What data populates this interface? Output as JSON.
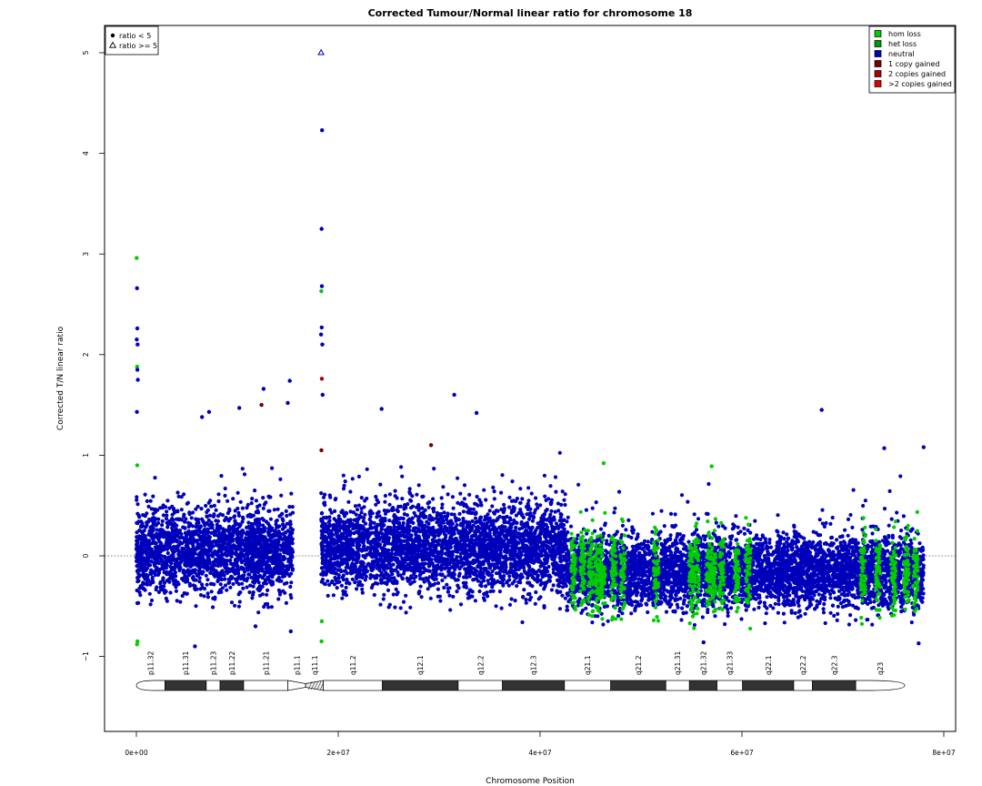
{
  "chart_data": {
    "type": "scatter",
    "title": "Corrected Tumour/Normal linear ratio for chromosome  18",
    "xlabel": "Chromosome Position",
    "ylabel": "Corrected T/N linear ratio",
    "xlim": [
      0,
      80000000
    ],
    "ylim": [
      -1.7,
      5.2
    ],
    "x_ticks": [
      {
        "value": 0,
        "label": "0e+00"
      },
      {
        "value": 20000000,
        "label": "2e+07"
      },
      {
        "value": 40000000,
        "label": "4e+07"
      },
      {
        "value": 60000000,
        "label": "6e+07"
      },
      {
        "value": 80000000,
        "label": "8e+07"
      }
    ],
    "y_ticks": [
      {
        "value": -1,
        "label": "−1"
      },
      {
        "value": 0,
        "label": "0"
      },
      {
        "value": 1,
        "label": "1"
      },
      {
        "value": 2,
        "label": "2"
      },
      {
        "value": 3,
        "label": "3"
      },
      {
        "value": 4,
        "label": "4"
      },
      {
        "value": 5,
        "label": "5"
      }
    ],
    "reference_line_y": 0,
    "grid": false,
    "legend_shape": {
      "placement": "top-left",
      "entries": [
        {
          "label": "ratio < 5",
          "marker": "filled-circle"
        },
        {
          "label": "ratio >= 5",
          "marker": "open-triangle"
        }
      ]
    },
    "legend_status": {
      "placement": "top-right",
      "entries": [
        {
          "label": "hom loss",
          "color": "#00cc00"
        },
        {
          "label": "het loss",
          "color": "#009900"
        },
        {
          "label": "neutral",
          "color": "#0000bb"
        },
        {
          "label": "1 copy gained",
          "color": "#770000"
        },
        {
          "label": "2 copies gained",
          "color": "#aa0000"
        },
        {
          "label": ">2 copies gained",
          "color": "#dd0000"
        }
      ]
    },
    "segments": [
      {
        "status": "neutral",
        "x_start": 0,
        "x_end": 15500000,
        "baseline": 0.05,
        "spread": 0.38
      },
      {
        "status": "neutral",
        "x_start": 18300000,
        "x_end": 42500000,
        "baseline": 0.08,
        "spread": 0.4
      },
      {
        "status": "neutral",
        "x_start": 42500000,
        "x_end": 78000000,
        "baseline": -0.15,
        "spread": 0.33
      }
    ],
    "green_clusters_x": [
      43300000,
      44200000,
      45000000,
      45700000,
      46200000,
      47300000,
      48200000,
      51500000,
      55000000,
      55500000,
      56700000,
      57200000,
      58000000,
      59500000,
      60600000,
      72000000,
      73500000,
      75000000,
      76300000,
      77200000
    ],
    "points": [
      {
        "x": 18300000,
        "y": 5.0,
        "status": "neutral",
        "marker": "open-triangle"
      },
      {
        "x": 18400000,
        "y": 4.23,
        "status": "neutral"
      },
      {
        "x": 18350000,
        "y": 3.25,
        "status": "neutral"
      },
      {
        "x": 18380000,
        "y": 2.68,
        "status": "neutral"
      },
      {
        "x": 18320000,
        "y": 2.63,
        "status": "hom loss"
      },
      {
        "x": 18360000,
        "y": 2.27,
        "status": "neutral"
      },
      {
        "x": 18300000,
        "y": 2.2,
        "status": "neutral"
      },
      {
        "x": 18420000,
        "y": 2.1,
        "status": "neutral"
      },
      {
        "x": 18380000,
        "y": 1.76,
        "status": "2 copies gained"
      },
      {
        "x": 18450000,
        "y": 1.6,
        "status": "neutral"
      },
      {
        "x": 18330000,
        "y": 1.05,
        "status": "1 copy gained"
      },
      {
        "x": 18370000,
        "y": -0.65,
        "status": "hom loss"
      },
      {
        "x": 18340000,
        "y": -0.85,
        "status": "hom loss"
      },
      {
        "x": 30000,
        "y": 2.96,
        "status": "hom loss"
      },
      {
        "x": 60000,
        "y": 2.66,
        "status": "neutral"
      },
      {
        "x": 90000,
        "y": 2.26,
        "status": "neutral"
      },
      {
        "x": 40000,
        "y": 2.15,
        "status": "neutral"
      },
      {
        "x": 120000,
        "y": 2.1,
        "status": "neutral"
      },
      {
        "x": 70000,
        "y": 1.88,
        "status": "hom loss"
      },
      {
        "x": 100000,
        "y": 1.85,
        "status": "neutral"
      },
      {
        "x": 140000,
        "y": 1.75,
        "status": "neutral"
      },
      {
        "x": 50000,
        "y": 1.43,
        "status": "neutral"
      },
      {
        "x": 80000,
        "y": 0.9,
        "status": "hom loss"
      },
      {
        "x": 110000,
        "y": -0.85,
        "status": "hom loss"
      },
      {
        "x": 60000,
        "y": -0.88,
        "status": "hom loss"
      },
      {
        "x": 15200000,
        "y": 1.74,
        "status": "neutral"
      },
      {
        "x": 12600000,
        "y": 1.66,
        "status": "neutral"
      },
      {
        "x": 15000000,
        "y": 1.52,
        "status": "neutral"
      },
      {
        "x": 10200000,
        "y": 1.47,
        "status": "neutral"
      },
      {
        "x": 12400000,
        "y": 1.5,
        "status": "1 copy gained"
      },
      {
        "x": 6500000,
        "y": 1.38,
        "status": "neutral"
      },
      {
        "x": 7200000,
        "y": 1.43,
        "status": "neutral"
      },
      {
        "x": 11800000,
        "y": -0.7,
        "status": "neutral"
      },
      {
        "x": 15300000,
        "y": -0.75,
        "status": "neutral"
      },
      {
        "x": 5800000,
        "y": -0.9,
        "status": "neutral"
      },
      {
        "x": 31500000,
        "y": 1.6,
        "status": "neutral"
      },
      {
        "x": 24300000,
        "y": 1.46,
        "status": "neutral"
      },
      {
        "x": 33700000,
        "y": 1.42,
        "status": "neutral"
      },
      {
        "x": 29200000,
        "y": 1.1,
        "status": "1 copy gained"
      },
      {
        "x": 67900000,
        "y": 1.45,
        "status": "neutral"
      },
      {
        "x": 78000000,
        "y": 1.08,
        "status": "neutral"
      },
      {
        "x": 74100000,
        "y": 1.07,
        "status": "neutral"
      },
      {
        "x": 46300000,
        "y": 0.92,
        "status": "hom loss"
      },
      {
        "x": 57000000,
        "y": 0.89,
        "status": "hom loss"
      },
      {
        "x": 56200000,
        "y": -0.86,
        "status": "neutral"
      },
      {
        "x": 77500000,
        "y": -0.87,
        "status": "neutral"
      }
    ]
  },
  "ideogram": {
    "bands": [
      {
        "label": "p11.32",
        "start": 0,
        "end": 2900000,
        "stain": "gneg"
      },
      {
        "label": "p11.31",
        "start": 2900000,
        "end": 7100000,
        "stain": "gpos"
      },
      {
        "label": "p11.23",
        "start": 7100000,
        "end": 8500000,
        "stain": "gneg"
      },
      {
        "label": "p11.22",
        "start": 8500000,
        "end": 10900000,
        "stain": "gpos"
      },
      {
        "label": "p11.21",
        "start": 10900000,
        "end": 15400000,
        "stain": "gneg"
      },
      {
        "label": "p11.1",
        "start": 15400000,
        "end": 17200000,
        "stain": "acen"
      },
      {
        "label": "q11.1",
        "start": 17200000,
        "end": 19000000,
        "stain": "gvar"
      },
      {
        "label": "q11.2",
        "start": 19000000,
        "end": 25000000,
        "stain": "gneg"
      },
      {
        "label": "q12.1",
        "start": 25000000,
        "end": 32700000,
        "stain": "gpos"
      },
      {
        "label": "q12.2",
        "start": 32700000,
        "end": 37200000,
        "stain": "gneg"
      },
      {
        "label": "q12.3",
        "start": 37200000,
        "end": 43500000,
        "stain": "gpos"
      },
      {
        "label": "q21.1",
        "start": 43500000,
        "end": 48200000,
        "stain": "gneg"
      },
      {
        "label": "q21.2",
        "start": 48200000,
        "end": 53800000,
        "stain": "gpos"
      },
      {
        "label": "q21.31",
        "start": 53800000,
        "end": 56200000,
        "stain": "gneg"
      },
      {
        "label": "q21.32",
        "start": 56200000,
        "end": 59000000,
        "stain": "gpos"
      },
      {
        "label": "q21.33",
        "start": 59000000,
        "end": 61600000,
        "stain": "gneg"
      },
      {
        "label": "q22.1",
        "start": 61600000,
        "end": 66800000,
        "stain": "gpos"
      },
      {
        "label": "q22.2",
        "start": 66800000,
        "end": 68700000,
        "stain": "gneg"
      },
      {
        "label": "q22.3",
        "start": 68700000,
        "end": 73100000,
        "stain": "gpos"
      },
      {
        "label": "q23",
        "start": 73100000,
        "end": 78077248,
        "stain": "gneg"
      }
    ]
  }
}
